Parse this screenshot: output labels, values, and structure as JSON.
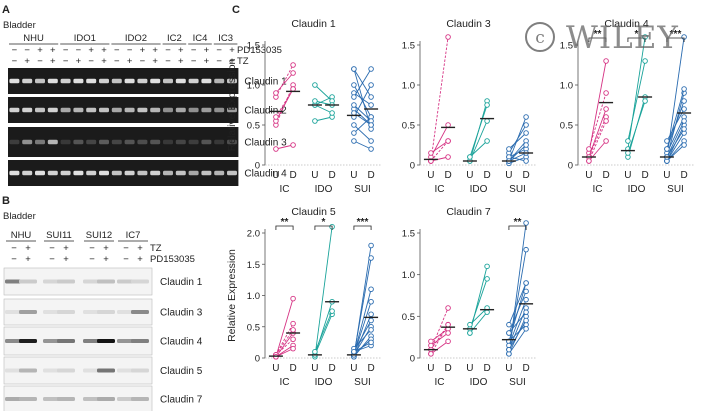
{
  "watermark": {
    "text": "WILEY"
  },
  "panel_a": {
    "letter": "A",
    "tissue": "Bladder",
    "groups": [
      "NHU",
      "IDO1",
      "IDO2",
      "IC2",
      "IC4",
      "IC3"
    ],
    "pd_row": [
      "−",
      "−",
      "+",
      "+",
      "−",
      "−",
      "+",
      "+",
      "−",
      "−",
      "+",
      "+",
      "−",
      "+",
      "−",
      "+",
      "−",
      "+"
    ],
    "tz_row": [
      "−",
      "+",
      "−",
      "+",
      "−",
      "+",
      "−",
      "+",
      "−",
      "+",
      "−",
      "+",
      "−",
      "+",
      "−",
      "+",
      "−",
      "+"
    ],
    "pd_label": "PD153035",
    "tz_label": "TZ",
    "bands": [
      "Claudin 1",
      "Claudin 2",
      "Claudin 3",
      "Claudin 4"
    ]
  },
  "panel_b": {
    "letter": "B",
    "tissue": "Bladder",
    "groups": [
      "NHU",
      "SUI11",
      "SUI12",
      "IC7"
    ],
    "tz_row": [
      "−",
      "+",
      "−",
      "+",
      "−",
      "+",
      "−",
      "+"
    ],
    "pd_row": [
      "−",
      "+",
      "−",
      "+",
      "−",
      "+",
      "−",
      "+"
    ],
    "tz_label": "TZ",
    "pd_label": "PD153035",
    "bands": [
      "Claudin 1",
      "Claudin 3",
      "Claudin 4",
      "Claudin 5",
      "Claudin 7"
    ]
  },
  "panel_c": {
    "letter": "C",
    "ylabel": "Relative Expression"
  },
  "chart_data": [
    {
      "type": "scatter",
      "title": "Claudin 1",
      "ylabel": "Relative Expression",
      "ylim": [
        0,
        1.5
      ],
      "yticks": [
        0,
        0.5,
        1.0,
        1.5
      ],
      "xticks": [
        "U",
        "D",
        "U",
        "D",
        "U",
        "D"
      ],
      "groups": [
        "IC",
        "IDO",
        "SUI"
      ],
      "series": [
        {
          "name": "IC",
          "color": "#d63384",
          "pairs": [
            [
              0.2,
              0.25
            ],
            [
              0.5,
              1.0
            ],
            [
              0.55,
              0.95
            ],
            [
              0.85,
              1.25
            ],
            [
              0.9,
              1.15
            ],
            [
              0.6,
              0.95
            ]
          ],
          "medians": [
            0.67,
            0.92
          ]
        },
        {
          "name": "IDO",
          "color": "#1aa39a",
          "pairs": [
            [
              0.55,
              0.6
            ],
            [
              0.75,
              0.85
            ],
            [
              0.75,
              0.65
            ],
            [
              1.0,
              0.8
            ],
            [
              0.8,
              0.75
            ]
          ],
          "medians": [
            0.75,
            0.75
          ]
        },
        {
          "name": "SUI",
          "color": "#2b6cb0",
          "pairs": [
            [
              0.3,
              0.2
            ],
            [
              0.4,
              0.6
            ],
            [
              0.6,
              1.0
            ],
            [
              0.7,
              0.5
            ],
            [
              0.9,
              0.75
            ],
            [
              1.2,
              0.85
            ],
            [
              1.2,
              0.45
            ],
            [
              0.5,
              0.3
            ],
            [
              0.85,
              1.2
            ],
            [
              1.0,
              0.6
            ],
            [
              0.75,
              0.55
            ],
            [
              0.65,
              0.5
            ]
          ],
          "medians": [
            0.62,
            0.7
          ]
        }
      ],
      "significance": []
    },
    {
      "type": "scatter",
      "title": "Claudin 3",
      "ylim": [
        0,
        1.5
      ],
      "yticks": [
        0,
        0.5,
        1.0,
        1.5
      ],
      "xticks": [
        "U",
        "D",
        "U",
        "D",
        "U",
        "D"
      ],
      "groups": [
        "IC",
        "IDO",
        "SUI"
      ],
      "series": [
        {
          "name": "IC",
          "color": "#d63384",
          "pairs": [
            [
              0.05,
              0.1
            ],
            [
              0.05,
              1.6
            ],
            [
              0.1,
              0.5
            ],
            [
              0.05,
              0.3
            ],
            [
              0.15,
              0.3
            ]
          ],
          "medians": [
            0.07,
            0.47
          ]
        },
        {
          "name": "IDO",
          "color": "#1aa39a",
          "pairs": [
            [
              0.05,
              0.8
            ],
            [
              0.1,
              0.3
            ],
            [
              0.05,
              0.55
            ],
            [
              0.1,
              0.75
            ]
          ],
          "medians": [
            0.05,
            0.58
          ]
        },
        {
          "name": "SUI",
          "color": "#2b6cb0",
          "pairs": [
            [
              0.02,
              0.1
            ],
            [
              0.05,
              0.6
            ],
            [
              0.1,
              0.2
            ],
            [
              0.05,
              0.15
            ],
            [
              0.15,
              0.5
            ],
            [
              0.05,
              0.3
            ],
            [
              0.1,
              0.05
            ],
            [
              0.2,
              0.4
            ],
            [
              0.05,
              0.25
            ]
          ],
          "medians": [
            0.05,
            0.15
          ]
        }
      ],
      "significance": []
    },
    {
      "type": "scatter",
      "title": "Claudin 4",
      "ylim": [
        0,
        1.5
      ],
      "yticks": [
        0,
        0.5,
        1.0,
        1.5
      ],
      "xticks": [
        "U",
        "D",
        "U",
        "D",
        "U",
        "D"
      ],
      "groups": [
        "IC",
        "IDO",
        "SUI"
      ],
      "series": [
        {
          "name": "IC",
          "color": "#d63384",
          "pairs": [
            [
              0.05,
              0.3
            ],
            [
              0.1,
              0.6
            ],
            [
              0.15,
              1.3
            ],
            [
              0.2,
              0.9
            ],
            [
              0.1,
              0.7
            ],
            [
              0.05,
              0.55
            ]
          ],
          "medians": [
            0.1,
            0.78
          ]
        },
        {
          "name": "IDO",
          "color": "#1aa39a",
          "pairs": [
            [
              0.1,
              0.85
            ],
            [
              0.2,
              1.6
            ],
            [
              0.15,
              0.8
            ],
            [
              0.3,
              1.3
            ]
          ],
          "medians": [
            0.18,
            0.85
          ]
        },
        {
          "name": "SUI",
          "color": "#2b6cb0",
          "pairs": [
            [
              0.05,
              0.5
            ],
            [
              0.1,
              1.6
            ],
            [
              0.1,
              0.9
            ],
            [
              0.05,
              0.3
            ],
            [
              0.15,
              0.6
            ],
            [
              0.2,
              0.8
            ],
            [
              0.05,
              0.4
            ],
            [
              0.3,
              0.7
            ],
            [
              0.1,
              0.55
            ],
            [
              0.05,
              0.25
            ],
            [
              0.2,
              0.95
            ],
            [
              0.1,
              0.45
            ]
          ],
          "medians": [
            0.1,
            0.65
          ]
        }
      ],
      "significance": [
        {
          "group": "IC",
          "label": "**"
        },
        {
          "group": "IDO",
          "label": "*"
        },
        {
          "group": "SUI",
          "label": "***"
        }
      ]
    },
    {
      "type": "scatter",
      "title": "Claudin 5",
      "ylabel": "Relative Expression",
      "ylim": [
        0,
        2.0
      ],
      "yticks": [
        0,
        0.5,
        1.0,
        1.5,
        2.0
      ],
      "xticks": [
        "U",
        "D",
        "U",
        "D",
        "U",
        "D"
      ],
      "groups": [
        "IC",
        "IDO",
        "SUI"
      ],
      "series": [
        {
          "name": "IC",
          "color": "#d63384",
          "pairs": [
            [
              0.02,
              0.2
            ],
            [
              0.05,
              0.55
            ],
            [
              0.02,
              0.4
            ],
            [
              0.05,
              0.3
            ],
            [
              0.02,
              0.95
            ],
            [
              0.05,
              0.45
            ],
            [
              0.02,
              0.15
            ]
          ],
          "medians": [
            0.03,
            0.4
          ]
        },
        {
          "name": "IDO",
          "color": "#1aa39a",
          "pairs": [
            [
              0.02,
              2.1
            ],
            [
              0.05,
              0.9
            ],
            [
              0.05,
              0.7
            ],
            [
              0.1,
              0.75
            ]
          ],
          "medians": [
            0.05,
            0.9
          ]
        },
        {
          "name": "SUI",
          "color": "#2b6cb0",
          "pairs": [
            [
              0.02,
              1.8
            ],
            [
              0.05,
              1.6
            ],
            [
              0.05,
              0.9
            ],
            [
              0.1,
              0.6
            ],
            [
              0.02,
              0.35
            ],
            [
              0.05,
              0.5
            ],
            [
              0.1,
              0.2
            ],
            [
              0.05,
              0.3
            ],
            [
              0.02,
              0.7
            ],
            [
              0.15,
              0.45
            ],
            [
              0.05,
              1.1
            ],
            [
              0.1,
              0.25
            ]
          ],
          "medians": [
            0.05,
            0.65
          ]
        }
      ],
      "significance": [
        {
          "group": "IC",
          "label": "**"
        },
        {
          "group": "IDO",
          "label": "*"
        },
        {
          "group": "SUI",
          "label": "***"
        }
      ]
    },
    {
      "type": "scatter",
      "title": "Claudin 7",
      "ylim": [
        0,
        1.5
      ],
      "yticks": [
        0,
        0.5,
        1.0,
        1.5
      ],
      "xticks": [
        "U",
        "D",
        "U",
        "D",
        "U",
        "D"
      ],
      "groups": [
        "IC",
        "IDO",
        "SUI"
      ],
      "series": [
        {
          "name": "IC",
          "color": "#d63384",
          "pairs": [
            [
              0.05,
              0.2
            ],
            [
              0.1,
              0.4
            ],
            [
              0.2,
              0.35
            ],
            [
              0.1,
              0.6
            ],
            [
              0.15,
              0.3
            ],
            [
              0.05,
              0.4
            ]
          ],
          "medians": [
            0.1,
            0.37
          ]
        },
        {
          "name": "IDO",
          "color": "#1aa39a",
          "pairs": [
            [
              0.3,
              1.1
            ],
            [
              0.35,
              0.95
            ],
            [
              0.3,
              0.55
            ],
            [
              0.4,
              0.6
            ]
          ],
          "medians": [
            0.35,
            0.58
          ]
        },
        {
          "name": "SUI",
          "color": "#2b6cb0",
          "pairs": [
            [
              0.05,
              1.65
            ],
            [
              0.1,
              1.3
            ],
            [
              0.2,
              0.9
            ],
            [
              0.3,
              0.8
            ],
            [
              0.1,
              0.6
            ],
            [
              0.05,
              0.5
            ],
            [
              0.4,
              0.9
            ],
            [
              0.2,
              0.4
            ],
            [
              0.15,
              0.7
            ],
            [
              0.05,
              0.35
            ],
            [
              0.3,
              0.55
            ],
            [
              0.1,
              0.45
            ]
          ],
          "medians": [
            0.22,
            0.65
          ]
        }
      ],
      "significance": [
        {
          "group": "SUI",
          "label": "**"
        }
      ]
    }
  ]
}
